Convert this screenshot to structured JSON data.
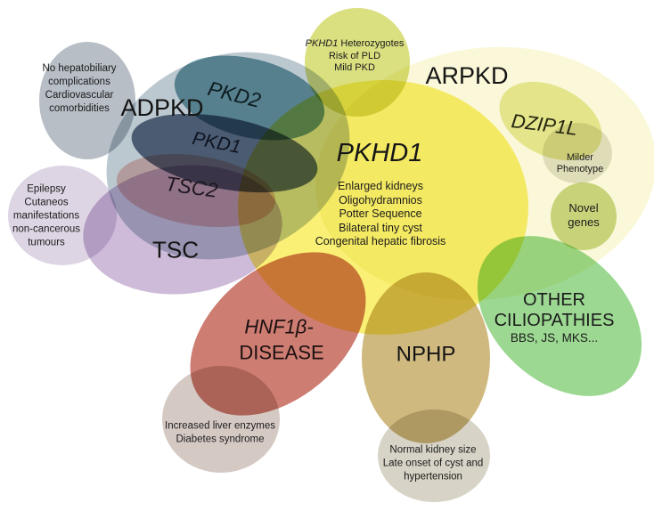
{
  "regions": {
    "adpkd": {
      "label": "ADPKD",
      "color": "#bcc8d0"
    },
    "pkd2": {
      "label": "PKD2",
      "color": "#74a3ad"
    },
    "pkd1": {
      "label": "PKD1",
      "color": "#66748b"
    },
    "no_hepatobiliary": {
      "color": "#b7bec6",
      "lines": [
        "No hepatobiliary",
        "complications",
        "Cardiovascular",
        "comorbidities"
      ]
    },
    "tsc": {
      "label": "TSC",
      "color": "#cdbbd9"
    },
    "tsc2": {
      "label": "TSC2",
      "color": "#f2c6c0"
    },
    "epilepsy": {
      "color": "#ded5e4",
      "lines": [
        "Epilepsy",
        "Cutaneos",
        "manifestations",
        "non-cancerous",
        "tumours"
      ]
    },
    "arpkd": {
      "label": "ARPKD",
      "color": "#faf8d8"
    },
    "pkhd1_het": {
      "color": "#dadf7f",
      "gene": "PKHD1",
      "gene_rest": " Heterozygotes",
      "lines": [
        "Risk of PLD",
        "Mild PKD"
      ]
    },
    "pkhd1": {
      "label": "PKHD1",
      "color": "#f9f075",
      "symptoms": [
        "Enlarged kidneys",
        "Oligohydramnios",
        "Potter Sequence",
        "Bilateral tiny cyst",
        "Congenital hepatic fibrosis"
      ]
    },
    "dzip1l": {
      "label": "DZIP1L",
      "color": "#e9eba4"
    },
    "milder_phenotype": {
      "color": "#e4e4da",
      "lines": [
        "Milder",
        "Phenotype"
      ]
    },
    "novel_genes": {
      "color": "#ccd88f",
      "lines": [
        "Novel",
        "genes"
      ]
    },
    "other_ciliopathies": {
      "color": "#9cd892",
      "line1": "OTHER",
      "line2": "CILIOPATHIES",
      "line3": "BBS, JS, MKS..."
    },
    "hnf1b": {
      "color": "#cd7d72",
      "gene_line": "HNF1β-",
      "disease_line": "DISEASE"
    },
    "increased_liver": {
      "color": "#d5c9c4",
      "lines": [
        "Increased liver enzymes",
        "Diabetes syndrome"
      ]
    },
    "nphp": {
      "label": "NPHP",
      "color": "#cfb97f"
    },
    "normal_kidney": {
      "color": "#d7d3c6",
      "lines": [
        "Normal kidney size",
        "Late onset of cyst and",
        "hypertension"
      ]
    }
  }
}
